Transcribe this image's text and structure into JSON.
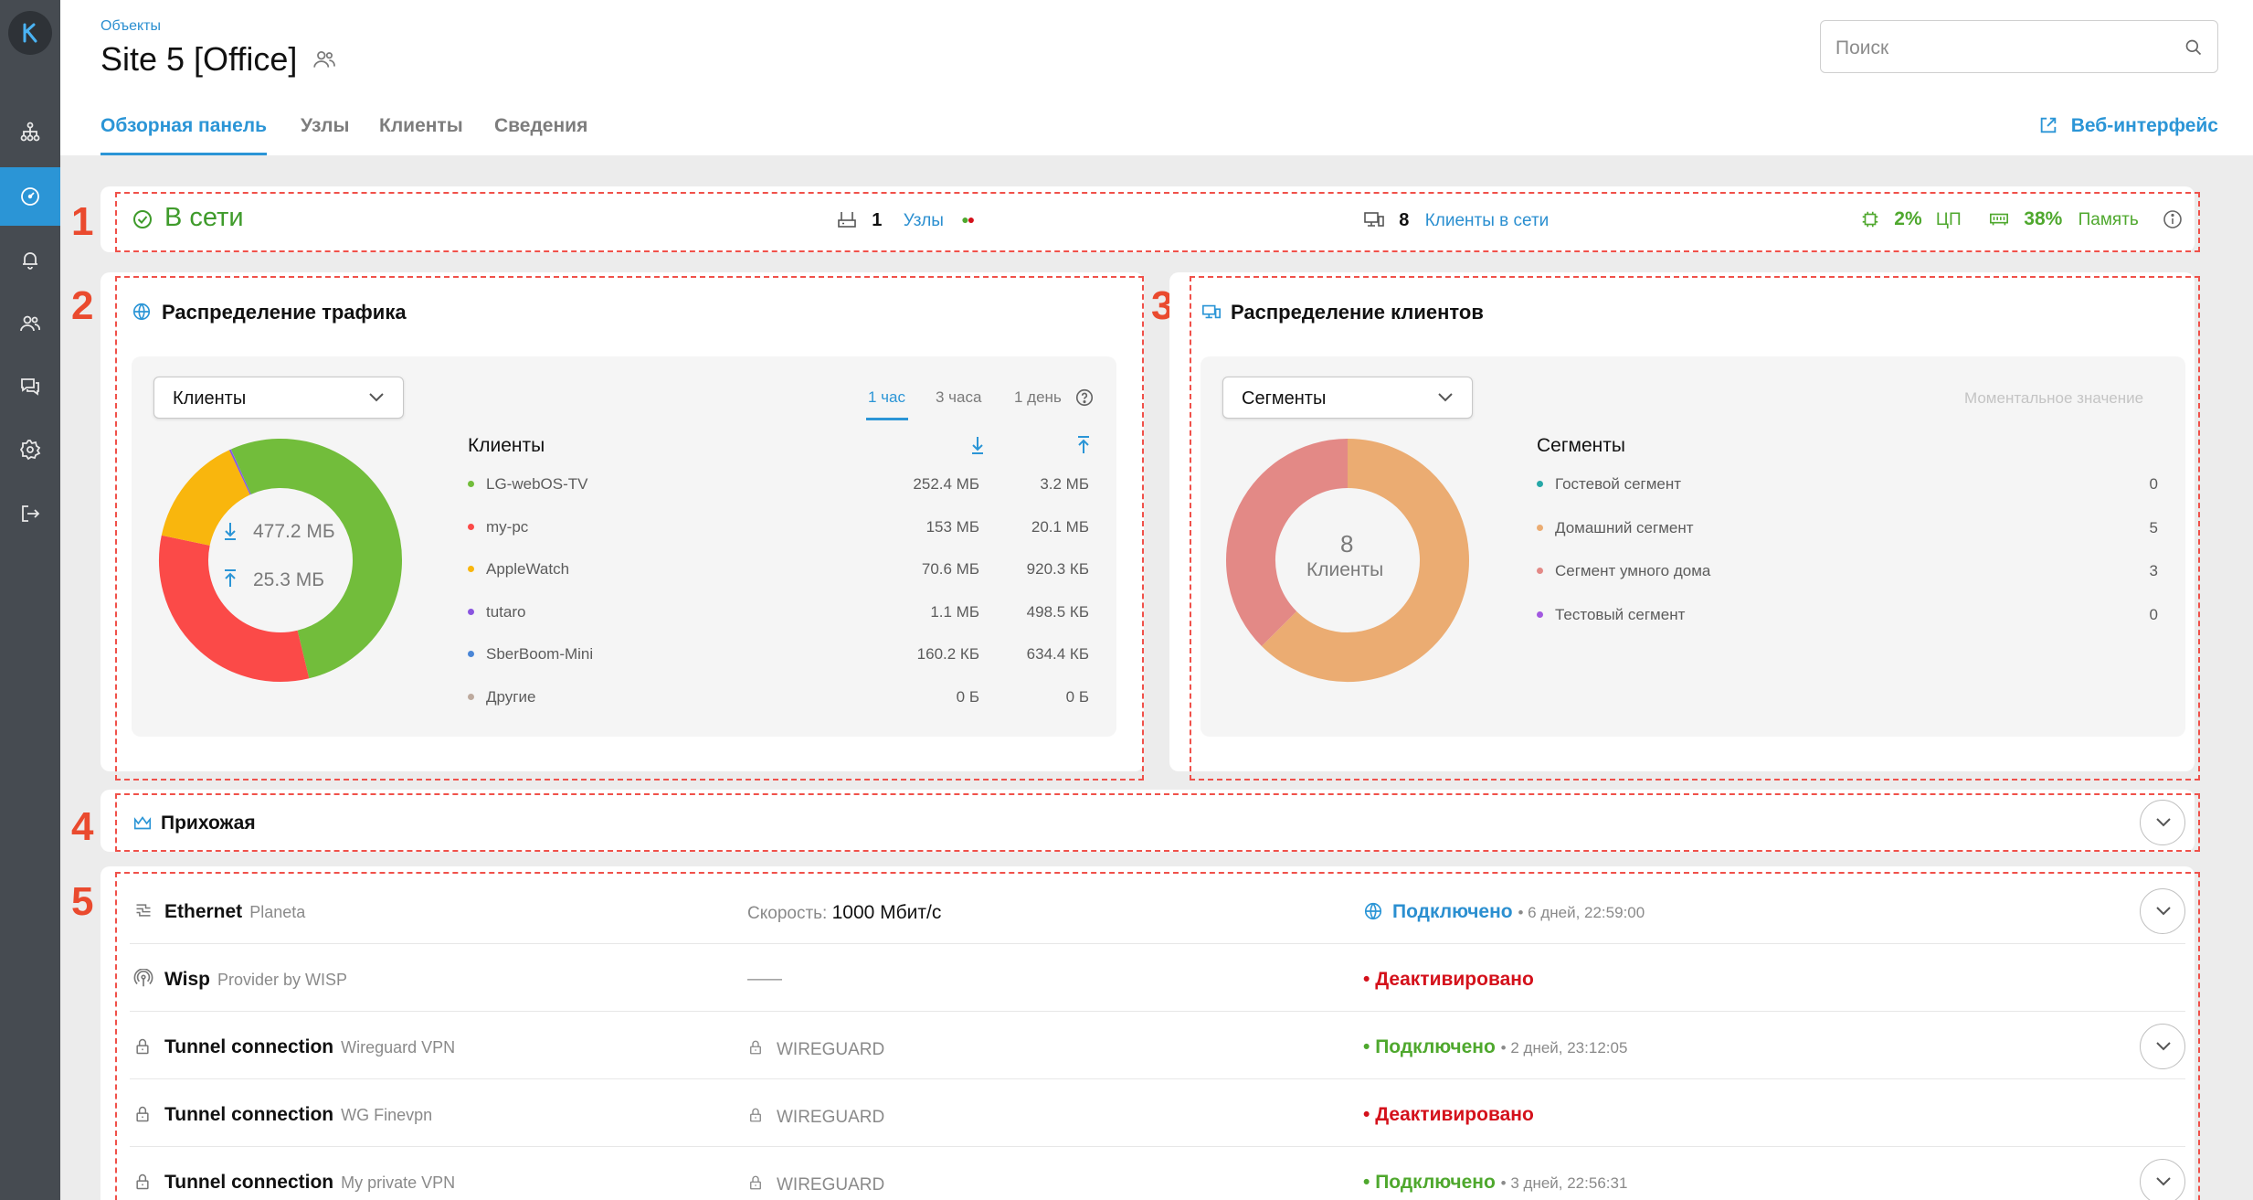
{
  "header": {
    "breadcrumb": "Объекты",
    "title": "Site 5 [Office]",
    "search_placeholder": "Поиск",
    "web_interface": "Веб-интерфейс"
  },
  "tabs": [
    "Обзорная панель",
    "Узлы",
    "Клиенты",
    "Сведения"
  ],
  "sidebar": {
    "items": [
      "logo",
      "topology-icon",
      "dashboard-icon",
      "bell-icon",
      "users-icon",
      "chat-icon",
      "gear-icon",
      "logout-icon"
    ],
    "active": "dashboard-icon",
    "accent": "#2b95d6"
  },
  "markers": [
    "1",
    "2",
    "3",
    "4",
    "5"
  ],
  "status_bar": {
    "state": "В сети",
    "nodes_count": "1",
    "nodes_label": "Узлы",
    "clients_count": "8",
    "clients_label": "Клиенты в сети",
    "cpu_value": "2%",
    "cpu_label": "ЦП",
    "memory_value": "38%",
    "memory_label": "Память"
  },
  "traffic": {
    "title": "Распределение трафика",
    "dropdown": "Клиенты",
    "time_tabs": [
      "1 час",
      "3 часа",
      "1 день"
    ],
    "active_time_tab": "1 час",
    "total_down": "477.2 МБ",
    "total_up": "25.3 МБ",
    "legend_title": "Клиенты",
    "clients": [
      {
        "name": "LG-webOS-TV",
        "down": "252.4 МБ",
        "up": "3.2 МБ",
        "color": "#72bd3b"
      },
      {
        "name": "my-pc",
        "down": "153 МБ",
        "up": "20.1 МБ",
        "color": "#fb4a48"
      },
      {
        "name": "AppleWatch",
        "down": "70.6 МБ",
        "up": "920.3 КБ",
        "color": "#f9b60d"
      },
      {
        "name": "tutaro",
        "down": "1.1 МБ",
        "up": "498.5 КБ",
        "color": "#8a55e0"
      },
      {
        "name": "SberBoom-Mini",
        "down": "160.2 КБ",
        "up": "634.4 КБ",
        "color": "#4a86d6"
      },
      {
        "name": "Другие",
        "down": "0 Б",
        "up": "0 Б",
        "color": "#bdaa9e"
      }
    ]
  },
  "clients_dist": {
    "title": "Распределение клиентов",
    "dropdown": "Сегменты",
    "moment_label": "Моментальное значение",
    "total": "8",
    "total_label": "Клиенты",
    "legend_title": "Сегменты",
    "segments": [
      {
        "name": "Гостевой сегмент",
        "count": "0",
        "color": "#26a7a7"
      },
      {
        "name": "Домашний сегмент",
        "count": "5",
        "color": "#ebac72"
      },
      {
        "name": "Сегмент умного дома",
        "count": "3",
        "color": "#e38986"
      },
      {
        "name": "Тестовый сегмент",
        "count": "0",
        "color": "#a259e0"
      }
    ]
  },
  "hallway": {
    "title": "Прихожая"
  },
  "connections": [
    {
      "name": "Ethernet",
      "sub": "Planeta",
      "mid_label": "Скорость:",
      "mid_value": "1000 Мбит/с",
      "status": "Подключено",
      "meta": "6 дней, 22:59:00"
    },
    {
      "name": "Wisp",
      "sub": "Provider by WISP",
      "mid_value": "——",
      "status": "Деактивировано"
    },
    {
      "name": "Tunnel connection",
      "sub": "Wireguard VPN",
      "mid_value": "WIREGUARD",
      "status": "Подключено",
      "meta": "2 дней, 23:12:05"
    },
    {
      "name": "Tunnel connection",
      "sub": "WG Finevpn",
      "mid_value": "WIREGUARD",
      "status": "Деактивировано"
    },
    {
      "name": "Tunnel connection",
      "sub": "My private VPN",
      "mid_value": "WIREGUARD",
      "status": "Подключено",
      "meta": "3 дней, 22:56:31"
    }
  ],
  "bullet": "•",
  "meta_separator": "•"
}
